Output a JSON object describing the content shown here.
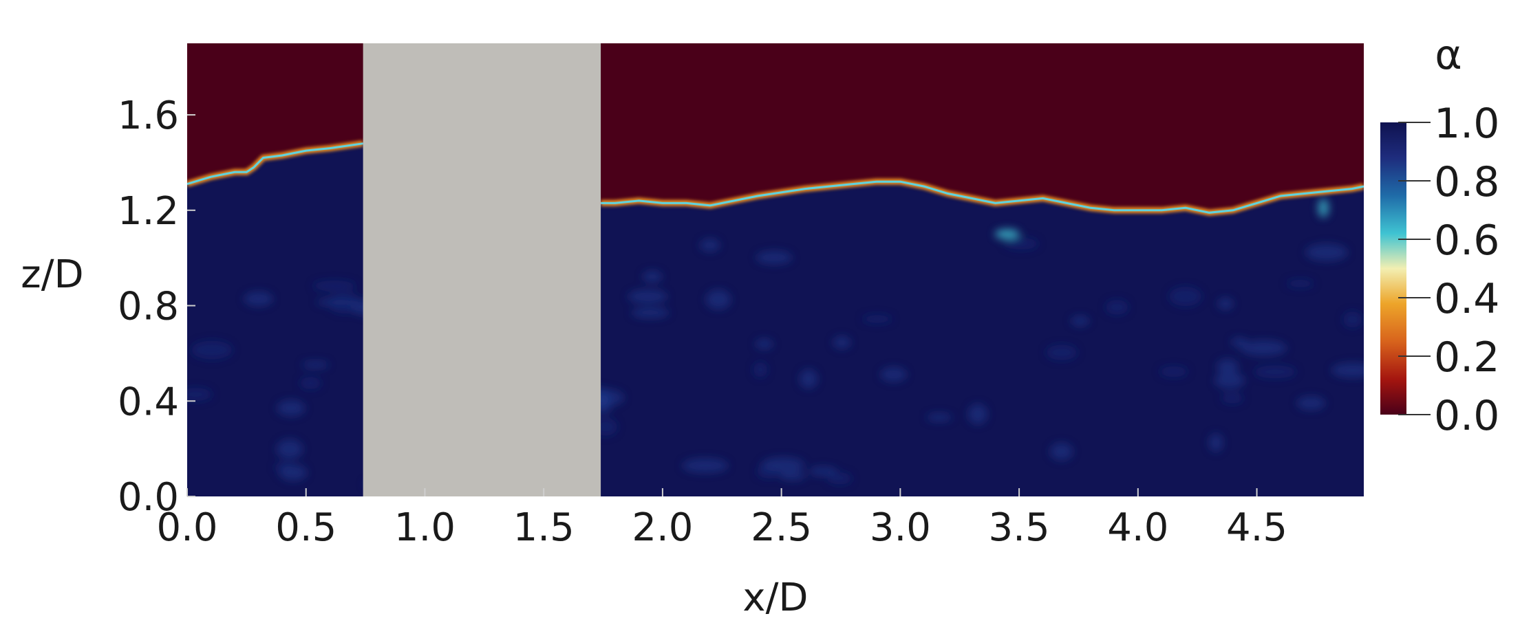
{
  "chart_data": {
    "type": "heatmap",
    "title": "",
    "xlabel": "x/D",
    "ylabel": "z/D",
    "xlim": [
      0.0,
      4.95
    ],
    "ylim": [
      0.0,
      1.9
    ],
    "x_ticks": [
      0.0,
      0.5,
      1.0,
      1.5,
      2.0,
      2.5,
      3.0,
      3.5,
      4.0,
      4.5
    ],
    "x_tick_labels": [
      "0.0",
      "0.5",
      "1.0",
      "1.5",
      "2.0",
      "2.5",
      "3.0",
      "3.5",
      "4.0",
      "4.5"
    ],
    "y_ticks": [
      0.0,
      0.4,
      0.8,
      1.2,
      1.6
    ],
    "y_tick_labels": [
      "0.0",
      "0.4",
      "0.8",
      "1.2",
      "1.6"
    ],
    "obstacle": {
      "x_range": [
        0.74,
        1.74
      ],
      "color": "#bfbdb8"
    },
    "interface": {
      "x": [
        0.0,
        0.1,
        0.2,
        0.25,
        0.28,
        0.32,
        0.4,
        0.5,
        0.6,
        0.74,
        1.74,
        1.8,
        1.9,
        2.0,
        2.1,
        2.2,
        2.4,
        2.6,
        2.8,
        2.9,
        3.0,
        3.1,
        3.2,
        3.3,
        3.4,
        3.5,
        3.6,
        3.7,
        3.8,
        3.9,
        4.0,
        4.1,
        4.2,
        4.3,
        4.4,
        4.5,
        4.6,
        4.7,
        4.8,
        4.9,
        4.95
      ],
      "z": [
        1.31,
        1.34,
        1.36,
        1.36,
        1.38,
        1.42,
        1.43,
        1.45,
        1.46,
        1.48,
        1.23,
        1.23,
        1.24,
        1.23,
        1.23,
        1.22,
        1.26,
        1.29,
        1.31,
        1.32,
        1.32,
        1.3,
        1.27,
        1.25,
        1.23,
        1.24,
        1.25,
        1.23,
        1.21,
        1.2,
        1.2,
        1.2,
        1.21,
        1.19,
        1.2,
        1.23,
        1.26,
        1.27,
        1.28,
        1.29,
        1.3
      ]
    },
    "colorbar": {
      "label": "α",
      "range": [
        0.0,
        1.0
      ],
      "ticks": [
        0.0,
        0.2,
        0.4,
        0.6,
        0.8,
        1.0
      ],
      "tick_labels": [
        "0.0",
        "0.2",
        "0.4",
        "0.6",
        "0.8",
        "1.0"
      ],
      "colormap": [
        {
          "value": 0.0,
          "color": "#4a0019"
        },
        {
          "value": 0.12,
          "color": "#a4150f"
        },
        {
          "value": 0.25,
          "color": "#d8631c"
        },
        {
          "value": 0.38,
          "color": "#eda52a"
        },
        {
          "value": 0.5,
          "color": "#f2efb2"
        },
        {
          "value": 0.62,
          "color": "#3fc3d2"
        },
        {
          "value": 0.75,
          "color": "#1f6ba8"
        },
        {
          "value": 0.88,
          "color": "#1e2c7d"
        },
        {
          "value": 1.0,
          "color": "#0f1250"
        }
      ]
    },
    "air_color": "#4a0019",
    "water_color": "#101354"
  }
}
